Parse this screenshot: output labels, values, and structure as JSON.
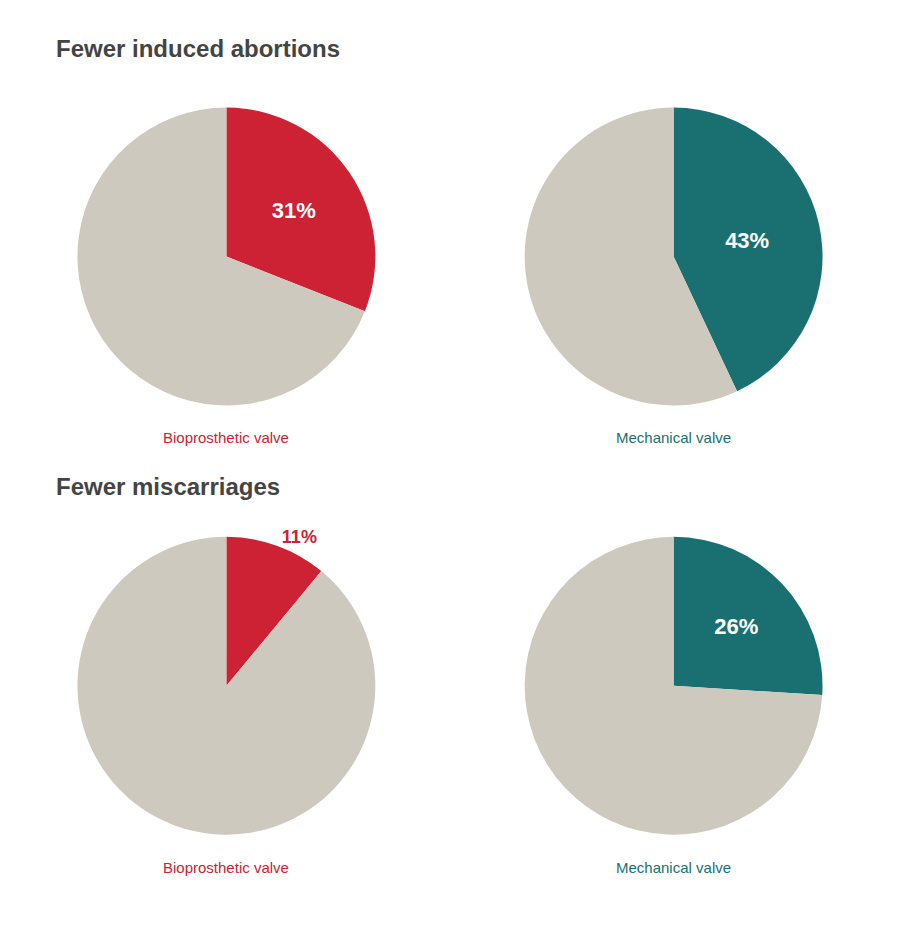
{
  "chart_data": [
    {
      "type": "pie",
      "title": "Fewer induced abortions",
      "subtitle": "Bioprosthetic valve",
      "values": [
        31,
        69
      ],
      "value_labels": [
        "31%",
        null
      ],
      "colors": [
        "#cc2233",
        "#cdc9bf"
      ],
      "data_labels": true
    },
    {
      "type": "pie",
      "subtitle": "Mechanical valve",
      "values": [
        43,
        57
      ],
      "value_labels": [
        "43%",
        null
      ],
      "colors": [
        "#1a7070",
        "#cdc9bf"
      ],
      "data_labels": true
    },
    {
      "type": "pie",
      "title": "Fewer miscarriages",
      "subtitle": "Bioprosthetic valve",
      "values": [
        11,
        89
      ],
      "value_labels": [
        "11%",
        null
      ],
      "colors": [
        "#cc2233",
        "#cdc9bf"
      ],
      "data_labels": true
    },
    {
      "type": "pie",
      "subtitle": "Mechanical valve",
      "values": [
        26,
        74
      ],
      "value_labels": [
        "26%",
        null
      ],
      "colors": [
        "#1a7070",
        "#cdc9bf"
      ],
      "data_labels": true
    }
  ]
}
